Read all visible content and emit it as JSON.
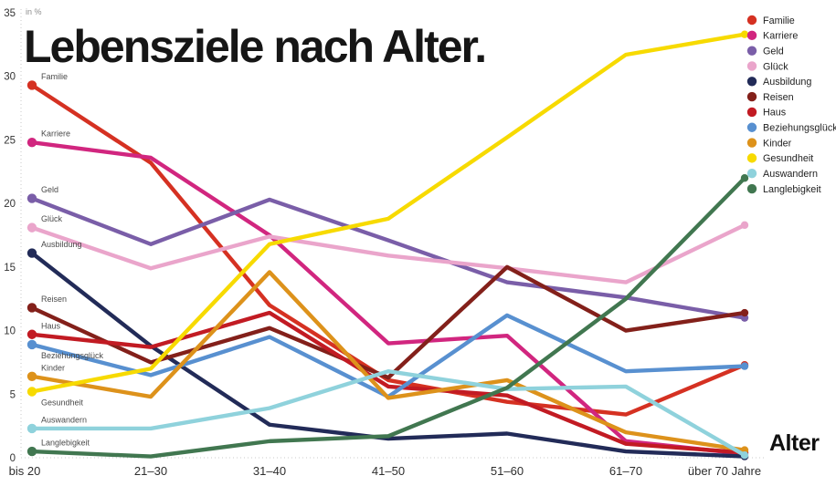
{
  "chart_data": {
    "type": "line",
    "title": "Lebensziele nach Alter.",
    "unit_label": "in %",
    "xlabel": "Alter",
    "categories": [
      "bis 20",
      "21–30",
      "31–40",
      "41–50",
      "51–60",
      "61–70",
      "über 70 Jahre"
    ],
    "y_ticks": [
      0,
      5,
      10,
      15,
      20,
      25,
      30,
      35
    ],
    "ylim": [
      0,
      35
    ],
    "grid": "dotted left axis and dotted zero baseline only",
    "legend_position": "top-right",
    "axis_color": "#c9c9c9",
    "tick_label_color": "#333333",
    "series": [
      {
        "name": "Familie",
        "color": "#d53122",
        "label_below": false,
        "values": [
          29.3,
          23.2,
          12.0,
          6.1,
          4.4,
          3.4,
          7.3
        ]
      },
      {
        "name": "Karriere",
        "color": "#d1267f",
        "label_below": false,
        "values": [
          24.8,
          23.6,
          17.5,
          9.0,
          9.6,
          1.3,
          0.3
        ]
      },
      {
        "name": "Geld",
        "color": "#7a5ea8",
        "label_below": false,
        "values": [
          20.4,
          16.8,
          20.3,
          17.1,
          13.8,
          12.6,
          11.0
        ]
      },
      {
        "name": "Glück",
        "color": "#eaa5cb",
        "label_below": false,
        "values": [
          18.1,
          14.9,
          17.4,
          15.9,
          14.9,
          13.8,
          18.3
        ]
      },
      {
        "name": "Ausbildung",
        "color": "#222b58",
        "label_below": false,
        "values": [
          16.1,
          8.8,
          2.6,
          1.5,
          1.9,
          0.5,
          0.1
        ]
      },
      {
        "name": "Reisen",
        "color": "#83201a",
        "label_below": false,
        "values": [
          11.8,
          7.5,
          10.2,
          6.3,
          15.0,
          10.0,
          11.4
        ]
      },
      {
        "name": "Haus",
        "color": "#c21b23",
        "label_below": false,
        "values": [
          9.7,
          8.7,
          11.4,
          5.6,
          4.9,
          1.1,
          0.4
        ]
      },
      {
        "name": "Beziehungsglück",
        "color": "#5890d0",
        "label_below": true,
        "values": [
          8.9,
          6.5,
          9.5,
          4.8,
          11.2,
          6.8,
          7.2
        ]
      },
      {
        "name": "Kinder",
        "color": "#dd921b",
        "label_below": false,
        "values": [
          6.4,
          4.8,
          14.6,
          4.7,
          6.1,
          2.0,
          0.6
        ]
      },
      {
        "name": "Gesundheit",
        "color": "#f7da00",
        "label_below": true,
        "values": [
          5.2,
          7.0,
          16.8,
          18.8,
          25.2,
          31.7,
          33.3
        ]
      },
      {
        "name": "Auswandern",
        "color": "#8fd2dc",
        "label_below": false,
        "values": [
          2.3,
          2.3,
          3.9,
          6.8,
          5.4,
          5.6,
          0.2
        ]
      },
      {
        "name": "Langlebigkeit",
        "color": "#417750",
        "label_below": false,
        "values": [
          0.5,
          0.1,
          1.3,
          1.7,
          5.5,
          12.5,
          22.0
        ]
      }
    ]
  }
}
